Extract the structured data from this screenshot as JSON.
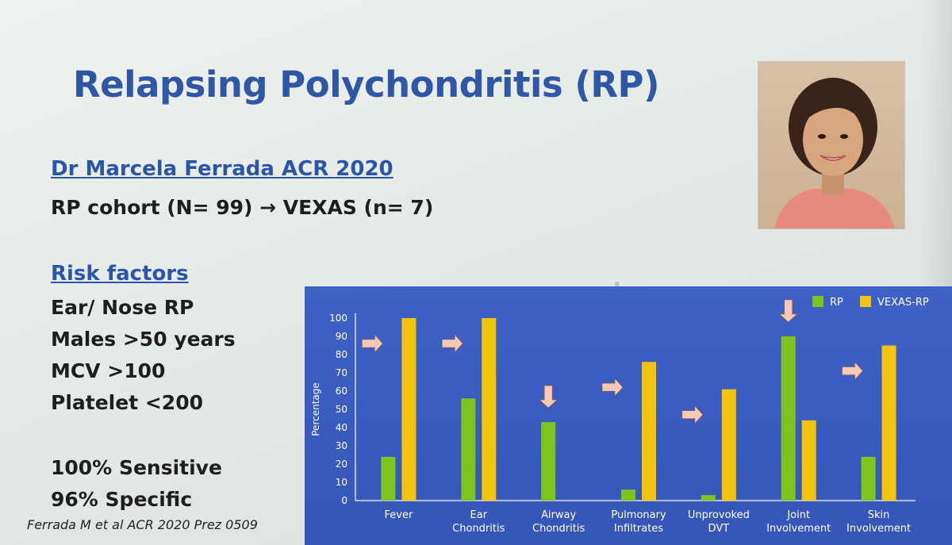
{
  "slide": {
    "title": "Relapsing Polychondritis (RP)",
    "reference_heading": "Dr Marcela Ferrada ACR 2020",
    "cohort_line": "RP cohort (N= 99) → VEXAS (n= 7)",
    "risk_heading": "Risk factors",
    "risk_factors": [
      "Ear/ Nose RP",
      "Males >50 years",
      "MCV >100",
      "Platelet <200"
    ],
    "sensitivity": "100% Sensitive",
    "specificity": "96% Specific",
    "citation": "Ferrada M et al ACR 2020 Prez 0509"
  },
  "colors": {
    "title_blue": "#2f57a6",
    "panel_blue": "#3b5cc0",
    "rp_green": "#7dc41f",
    "vexas_yellow": "#f2c410",
    "arrow_pink": "#f6c9b4"
  },
  "chart_data": {
    "type": "bar",
    "ylabel": "Percentage",
    "ylim": [
      0,
      100
    ],
    "yticks": [
      "0",
      "10",
      "20",
      "30",
      "40",
      "50",
      "60",
      "70",
      "80",
      "90",
      "100"
    ],
    "categories": [
      [
        "Fever"
      ],
      [
        "Ear",
        "Chondritis"
      ],
      [
        "Airway",
        "Chondritis"
      ],
      [
        "Pulmonary",
        "Infiltrates"
      ],
      [
        "Unprovoked",
        "DVT"
      ],
      [
        "Joint",
        "Involvement"
      ],
      [
        "Skin",
        "Involvement"
      ]
    ],
    "series": [
      {
        "name": "RP",
        "color": "#7dc41f",
        "values": [
          24,
          56,
          43,
          6,
          3,
          90,
          24
        ]
      },
      {
        "name": "VEXAS-RP",
        "color": "#f2c410",
        "values": [
          100,
          100,
          0,
          76,
          61,
          44,
          85
        ]
      }
    ],
    "legend_position": "top-right",
    "annotations": [
      {
        "category_index": 0,
        "kind": "right-arrow"
      },
      {
        "category_index": 1,
        "kind": "right-arrow"
      },
      {
        "category_index": 2,
        "kind": "down-arrow"
      },
      {
        "category_index": 3,
        "kind": "right-arrow"
      },
      {
        "category_index": 4,
        "kind": "right-arrow"
      },
      {
        "category_index": 5,
        "kind": "down-arrow"
      },
      {
        "category_index": 6,
        "kind": "right-arrow"
      }
    ]
  }
}
